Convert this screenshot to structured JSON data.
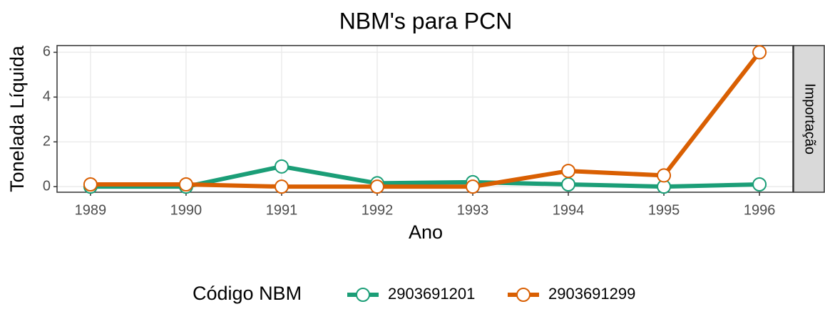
{
  "chart_data": {
    "type": "line",
    "title": "NBM's para PCN",
    "xlabel": "Ano",
    "ylabel": "Tonelada Líquida",
    "facet": "Importação",
    "legend_title": "Código NBM",
    "legend": "bottom",
    "grid": true,
    "x": [
      1989,
      1990,
      1991,
      1992,
      1993,
      1994,
      1995,
      1996
    ],
    "series": [
      {
        "name": "2903691201",
        "color": "#1b9e77",
        "values": [
          0,
          0,
          0.9,
          0.15,
          0.2,
          0.1,
          0,
          0.1
        ]
      },
      {
        "name": "2903691299",
        "color": "#d95f02",
        "values": [
          0.1,
          0.1,
          0,
          0,
          0,
          0.7,
          0.5,
          6
        ]
      }
    ],
    "xlim": [
      1988.65,
      1996.35
    ],
    "xticks": [
      1989,
      1990,
      1991,
      1992,
      1993,
      1994,
      1995,
      1996
    ],
    "ylim": [
      -0.25,
      6.3
    ],
    "yticks": [
      0,
      2,
      4,
      6
    ]
  }
}
